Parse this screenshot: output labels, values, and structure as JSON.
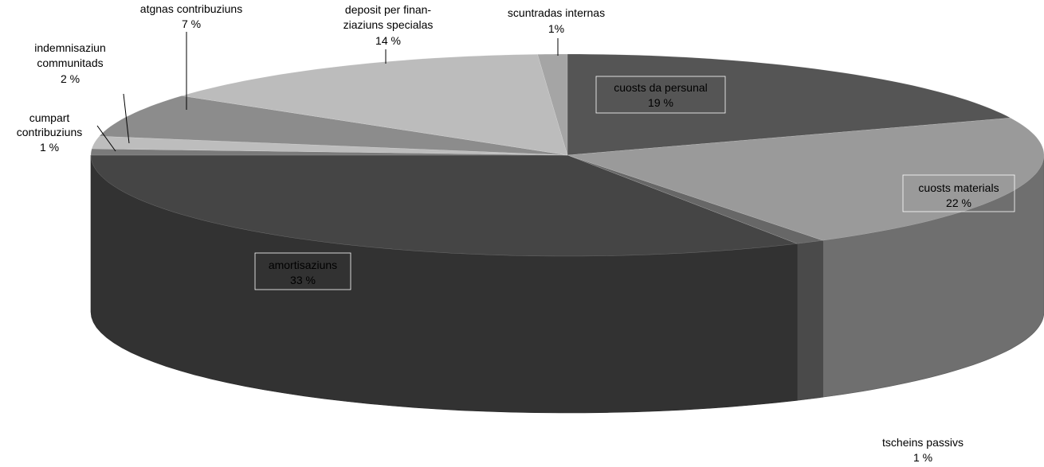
{
  "chart_data": {
    "type": "pie",
    "title": "",
    "style": "3d",
    "slices": [
      {
        "label": "cuosts da persunal",
        "value": 19,
        "display": "19 %",
        "color": "#555555"
      },
      {
        "label": "cuosts materials",
        "value": 22,
        "display": "22 %",
        "color": "#9a9a9a"
      },
      {
        "label": "tscheins passivs",
        "value": 1,
        "display": "1 %",
        "color": "#676767"
      },
      {
        "label": "amortisaziuns",
        "value": 33,
        "display": "33 %",
        "color": "#454545"
      },
      {
        "label": "cumpart contribuziuns",
        "value": 1,
        "display": "1 %",
        "color": "#7a7a7a"
      },
      {
        "label": "indemnisaziun communitads",
        "value": 2,
        "display": "2 %",
        "color": "#bdbdbd"
      },
      {
        "label": "atgnas contribuziuns",
        "value": 7,
        "display": "7 %",
        "color": "#8c8c8c"
      },
      {
        "label": "deposit per finanziaziuns specialas",
        "value": 14,
        "display": "14 %",
        "color": "#bcbcbc"
      },
      {
        "label": "scuntradas internas",
        "value": 1,
        "display": "1%",
        "color": "#a5a5a5"
      }
    ]
  },
  "labels": {
    "cuosts_da_persunal": {
      "line1": "cuosts da persunal",
      "line2": "19 %"
    },
    "cuosts_materials": {
      "line1": "cuosts materials",
      "line2": "22 %"
    },
    "tscheins_passivs": {
      "line1": "tscheins passivs",
      "line2": "1 %"
    },
    "amortisaziuns": {
      "line1": "amortisaziuns",
      "line2": "33 %"
    },
    "cumpart_contribuziuns": {
      "line1": "cumpart",
      "line2": "contribuziuns",
      "line3": "1 %"
    },
    "indemnisaziun_communitads": {
      "line1": "indemnisaziun",
      "line2": "communitads",
      "line3": "2 %"
    },
    "atgnas_contribuziuns": {
      "line1": "atgnas contribuziuns",
      "line2": "7 %"
    },
    "deposit_per_finanziaziuns_specialas": {
      "line1": "deposit per finan-",
      "line2": "ziaziuns specialas",
      "line3": "14 %"
    },
    "scuntradas_internas": {
      "line1": "scuntradas internas",
      "line2": "1%"
    }
  }
}
